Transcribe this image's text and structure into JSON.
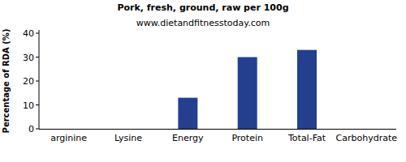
{
  "chart_data": {
    "type": "bar",
    "title": "Pork, fresh, ground, raw per 100g",
    "subtitle": "www.dietandfitnesstoday.com",
    "y_label": "Percentage of RDA (%)",
    "categories": [
      "arginine",
      "Lysine",
      "Energy",
      "Protein",
      "Total-Fat",
      "Carbohydrate"
    ],
    "values": [
      0,
      0,
      13,
      30,
      33,
      0
    ],
    "color": "#253f8f",
    "ylim": [
      0,
      40
    ],
    "yticks": [
      0,
      10,
      20,
      30,
      40
    ],
    "grid": false
  }
}
